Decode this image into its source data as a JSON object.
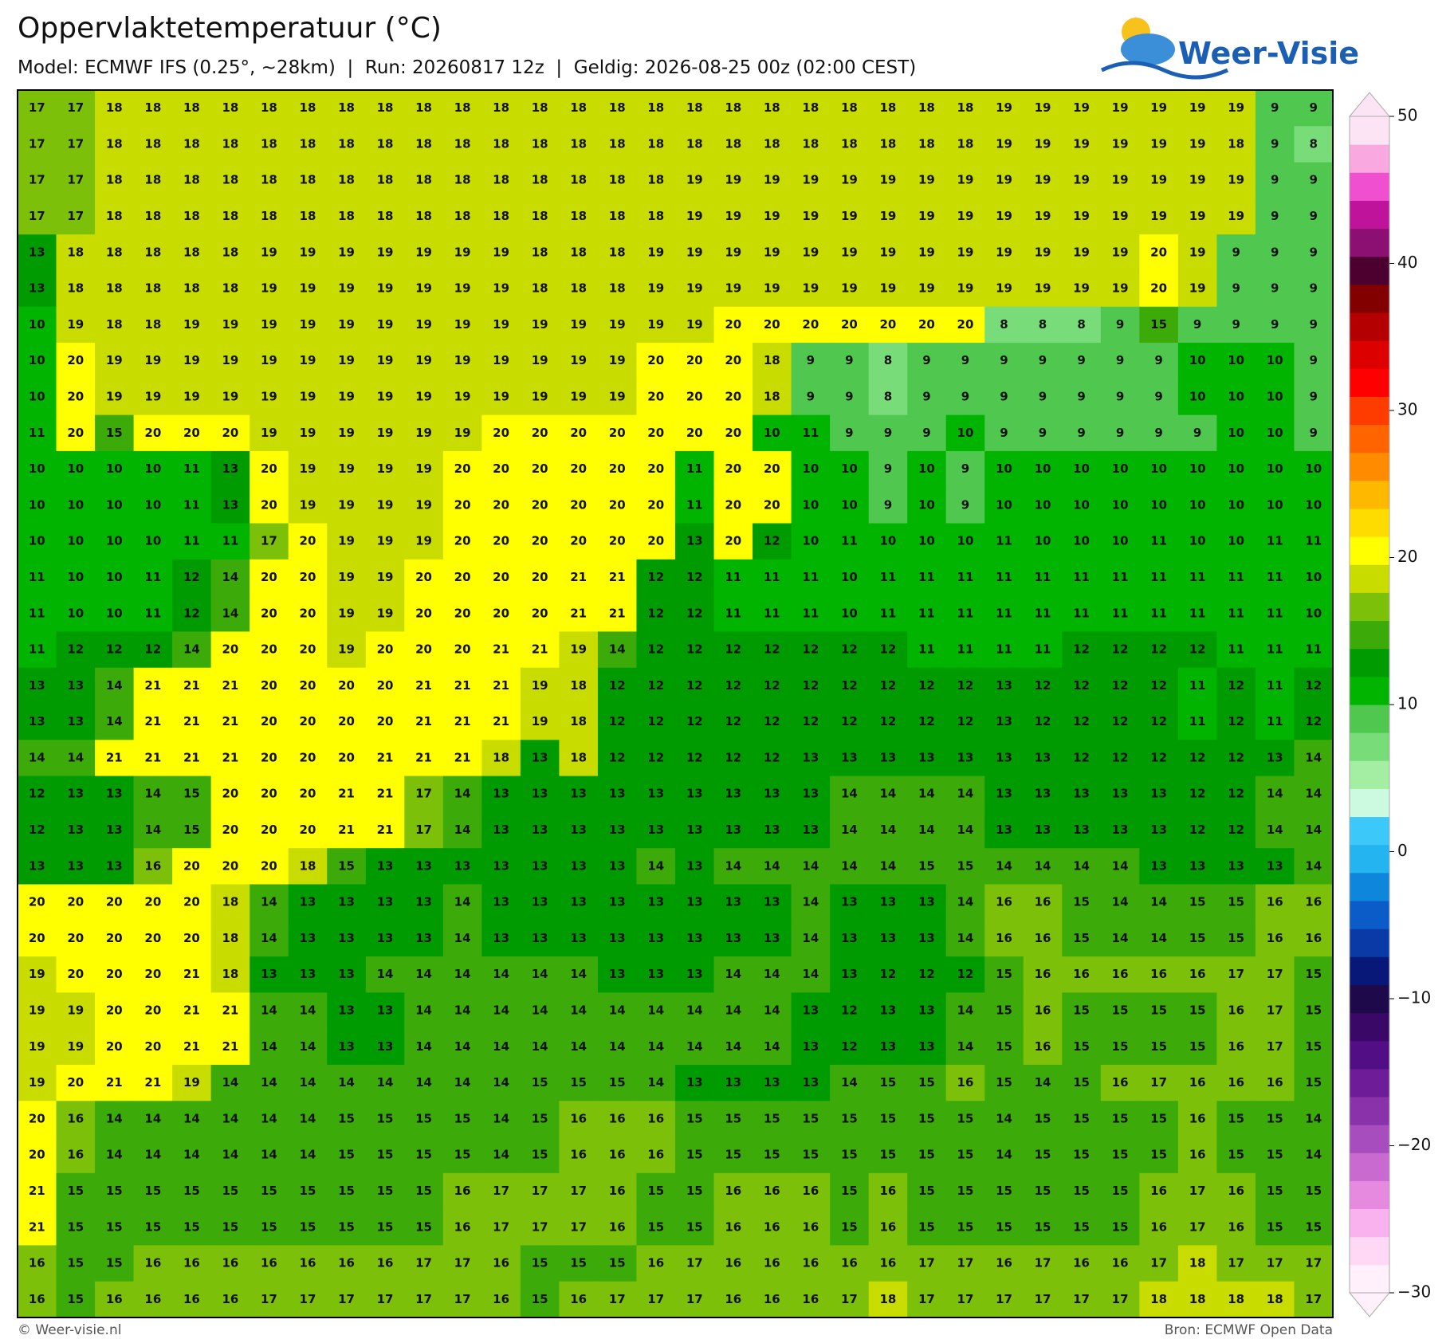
{
  "header": {
    "title": "Oppervlaktetemperatuur (°C)",
    "subtitle": "Model: ECMWF IFS (0.25°, ~28km)  |  Run: 20260817 12z  |  Geldig: 2026-08-25 00z (02:00 CEST)",
    "logo": "Weer-Visie"
  },
  "map": {
    "rows": [
      [
        17,
        17,
        18,
        18,
        18,
        18,
        18,
        18,
        18,
        18,
        18,
        18,
        18,
        18,
        18,
        18,
        18,
        18,
        18,
        18,
        18,
        18,
        18,
        18,
        18,
        19,
        19,
        19,
        19,
        19,
        19,
        19,
        9,
        9
      ],
      [
        17,
        17,
        18,
        18,
        18,
        18,
        18,
        18,
        18,
        18,
        18,
        18,
        18,
        18,
        18,
        18,
        18,
        18,
        18,
        18,
        18,
        18,
        18,
        18,
        18,
        19,
        19,
        19,
        19,
        19,
        19,
        18,
        9,
        8
      ],
      [
        17,
        17,
        18,
        18,
        18,
        18,
        18,
        18,
        18,
        18,
        18,
        18,
        18,
        18,
        18,
        18,
        18,
        19,
        19,
        19,
        19,
        19,
        19,
        19,
        19,
        19,
        19,
        19,
        19,
        19,
        19,
        19,
        9,
        9
      ],
      [
        17,
        17,
        18,
        18,
        18,
        18,
        18,
        18,
        18,
        18,
        18,
        18,
        18,
        18,
        18,
        18,
        18,
        19,
        19,
        19,
        19,
        19,
        19,
        19,
        19,
        19,
        19,
        19,
        19,
        19,
        19,
        19,
        9,
        9
      ],
      [
        13,
        18,
        18,
        18,
        18,
        18,
        19,
        19,
        19,
        19,
        19,
        19,
        19,
        18,
        18,
        18,
        19,
        19,
        19,
        19,
        19,
        19,
        19,
        19,
        19,
        19,
        19,
        19,
        19,
        20,
        19,
        9,
        9,
        9
      ],
      [
        13,
        18,
        18,
        18,
        18,
        18,
        19,
        19,
        19,
        19,
        19,
        19,
        19,
        18,
        18,
        18,
        19,
        19,
        19,
        19,
        19,
        19,
        19,
        19,
        19,
        19,
        19,
        19,
        19,
        20,
        19,
        9,
        9,
        9
      ],
      [
        10,
        19,
        18,
        18,
        19,
        19,
        19,
        19,
        19,
        19,
        19,
        19,
        19,
        19,
        19,
        19,
        19,
        19,
        20,
        20,
        20,
        20,
        20,
        20,
        20,
        8,
        8,
        8,
        9,
        15,
        9,
        9,
        9,
        9
      ],
      [
        10,
        20,
        19,
        19,
        19,
        19,
        19,
        19,
        19,
        19,
        19,
        19,
        19,
        19,
        19,
        19,
        20,
        20,
        20,
        18,
        9,
        9,
        8,
        9,
        9,
        9,
        9,
        9,
        9,
        9,
        10,
        10,
        10,
        9
      ],
      [
        10,
        20,
        19,
        19,
        19,
        19,
        19,
        19,
        19,
        19,
        19,
        19,
        19,
        19,
        19,
        19,
        20,
        20,
        20,
        18,
        9,
        9,
        8,
        9,
        9,
        9,
        9,
        9,
        9,
        9,
        10,
        10,
        10,
        9
      ],
      [
        11,
        20,
        15,
        20,
        20,
        20,
        19,
        19,
        19,
        19,
        19,
        19,
        20,
        20,
        20,
        20,
        20,
        20,
        20,
        10,
        11,
        9,
        9,
        9,
        10,
        9,
        9,
        9,
        9,
        9,
        9,
        10,
        10,
        9
      ],
      [
        10,
        10,
        10,
        10,
        11,
        13,
        20,
        19,
        19,
        19,
        19,
        20,
        20,
        20,
        20,
        20,
        20,
        11,
        20,
        20,
        10,
        10,
        9,
        10,
        9,
        10,
        10,
        10,
        10,
        10,
        10,
        10,
        10,
        10
      ],
      [
        10,
        10,
        10,
        10,
        11,
        13,
        20,
        19,
        19,
        19,
        19,
        20,
        20,
        20,
        20,
        20,
        20,
        11,
        20,
        20,
        10,
        10,
        9,
        10,
        9,
        10,
        10,
        10,
        10,
        10,
        10,
        10,
        10,
        10
      ],
      [
        10,
        10,
        10,
        10,
        11,
        11,
        17,
        20,
        19,
        19,
        19,
        20,
        20,
        20,
        20,
        20,
        20,
        13,
        20,
        12,
        10,
        11,
        10,
        10,
        10,
        11,
        10,
        10,
        10,
        11,
        10,
        10,
        11,
        11
      ],
      [
        11,
        10,
        10,
        11,
        12,
        14,
        20,
        20,
        19,
        19,
        20,
        20,
        20,
        20,
        21,
        21,
        12,
        12,
        11,
        11,
        11,
        10,
        11,
        11,
        11,
        11,
        11,
        11,
        11,
        11,
        11,
        11,
        11,
        10
      ],
      [
        11,
        10,
        10,
        11,
        12,
        14,
        20,
        20,
        19,
        19,
        20,
        20,
        20,
        20,
        21,
        21,
        12,
        12,
        11,
        11,
        11,
        10,
        11,
        11,
        11,
        11,
        11,
        11,
        11,
        11,
        11,
        11,
        11,
        10
      ],
      [
        11,
        12,
        12,
        12,
        14,
        20,
        20,
        20,
        19,
        20,
        20,
        20,
        21,
        21,
        19,
        14,
        12,
        12,
        12,
        12,
        12,
        12,
        12,
        11,
        11,
        11,
        11,
        12,
        12,
        12,
        12,
        11,
        11,
        11
      ],
      [
        13,
        13,
        14,
        21,
        21,
        21,
        20,
        20,
        20,
        20,
        21,
        21,
        21,
        19,
        18,
        12,
        12,
        12,
        12,
        12,
        12,
        12,
        12,
        12,
        12,
        13,
        12,
        12,
        12,
        12,
        11,
        12,
        11,
        12
      ],
      [
        13,
        13,
        14,
        21,
        21,
        21,
        20,
        20,
        20,
        20,
        21,
        21,
        21,
        19,
        18,
        12,
        12,
        12,
        12,
        12,
        12,
        12,
        12,
        12,
        12,
        13,
        12,
        12,
        12,
        12,
        11,
        12,
        11,
        12
      ],
      [
        14,
        14,
        21,
        21,
        21,
        21,
        20,
        20,
        20,
        21,
        21,
        21,
        18,
        13,
        18,
        12,
        12,
        12,
        12,
        12,
        13,
        13,
        13,
        13,
        13,
        13,
        13,
        12,
        12,
        12,
        12,
        12,
        13,
        14
      ],
      [
        12,
        13,
        13,
        14,
        15,
        20,
        20,
        20,
        21,
        21,
        17,
        14,
        13,
        13,
        13,
        13,
        13,
        13,
        13,
        13,
        13,
        14,
        14,
        14,
        14,
        13,
        13,
        13,
        13,
        13,
        12,
        12,
        14,
        14
      ],
      [
        12,
        13,
        13,
        14,
        15,
        20,
        20,
        20,
        21,
        21,
        17,
        14,
        13,
        13,
        13,
        13,
        13,
        13,
        13,
        13,
        13,
        14,
        14,
        14,
        14,
        13,
        13,
        13,
        13,
        13,
        12,
        12,
        14,
        14
      ],
      [
        13,
        13,
        13,
        16,
        20,
        20,
        20,
        18,
        15,
        13,
        13,
        13,
        13,
        13,
        13,
        13,
        14,
        13,
        14,
        14,
        14,
        14,
        14,
        15,
        15,
        14,
        14,
        14,
        14,
        13,
        13,
        13,
        13,
        14
      ],
      [
        20,
        20,
        20,
        20,
        20,
        18,
        14,
        13,
        13,
        13,
        13,
        14,
        13,
        13,
        13,
        13,
        13,
        13,
        13,
        13,
        14,
        13,
        13,
        13,
        14,
        16,
        16,
        15,
        14,
        14,
        15,
        15,
        16,
        16
      ],
      [
        20,
        20,
        20,
        20,
        20,
        18,
        14,
        13,
        13,
        13,
        13,
        14,
        13,
        13,
        13,
        13,
        13,
        13,
        13,
        13,
        14,
        13,
        13,
        13,
        14,
        16,
        16,
        15,
        14,
        14,
        15,
        15,
        16,
        16
      ],
      [
        19,
        20,
        20,
        20,
        21,
        18,
        13,
        13,
        13,
        14,
        14,
        14,
        14,
        14,
        14,
        13,
        13,
        13,
        14,
        14,
        14,
        13,
        12,
        12,
        12,
        15,
        16,
        16,
        16,
        16,
        16,
        17,
        17,
        15
      ],
      [
        19,
        19,
        20,
        20,
        21,
        21,
        14,
        14,
        13,
        13,
        14,
        14,
        14,
        14,
        14,
        14,
        14,
        14,
        14,
        14,
        13,
        12,
        13,
        13,
        14,
        15,
        16,
        15,
        15,
        15,
        15,
        16,
        17,
        15
      ],
      [
        19,
        19,
        20,
        20,
        21,
        21,
        14,
        14,
        13,
        13,
        14,
        14,
        14,
        14,
        14,
        14,
        14,
        14,
        14,
        14,
        13,
        12,
        13,
        13,
        14,
        15,
        16,
        15,
        15,
        15,
        15,
        16,
        17,
        15
      ],
      [
        19,
        20,
        21,
        21,
        19,
        14,
        14,
        14,
        14,
        14,
        14,
        14,
        14,
        15,
        15,
        15,
        14,
        13,
        13,
        13,
        13,
        14,
        15,
        15,
        16,
        15,
        14,
        15,
        16,
        17,
        16,
        16,
        16,
        15
      ],
      [
        20,
        16,
        14,
        14,
        14,
        14,
        14,
        14,
        15,
        15,
        15,
        15,
        14,
        15,
        16,
        16,
        16,
        15,
        15,
        15,
        15,
        15,
        15,
        15,
        15,
        14,
        15,
        15,
        15,
        15,
        16,
        15,
        15,
        14
      ],
      [
        20,
        16,
        14,
        14,
        14,
        14,
        14,
        14,
        15,
        15,
        15,
        15,
        14,
        15,
        16,
        16,
        16,
        15,
        15,
        15,
        15,
        15,
        15,
        15,
        15,
        14,
        15,
        15,
        15,
        15,
        16,
        15,
        15,
        14
      ],
      [
        21,
        15,
        15,
        15,
        15,
        15,
        15,
        15,
        15,
        15,
        15,
        16,
        17,
        17,
        17,
        16,
        15,
        15,
        16,
        16,
        16,
        15,
        16,
        15,
        15,
        15,
        15,
        15,
        15,
        16,
        17,
        16,
        15,
        15
      ],
      [
        21,
        15,
        15,
        15,
        15,
        15,
        15,
        15,
        15,
        15,
        15,
        16,
        17,
        17,
        17,
        16,
        15,
        15,
        16,
        16,
        16,
        15,
        16,
        15,
        15,
        15,
        15,
        15,
        15,
        16,
        17,
        16,
        15,
        15
      ],
      [
        16,
        15,
        15,
        16,
        16,
        16,
        16,
        16,
        16,
        16,
        17,
        17,
        16,
        15,
        15,
        15,
        16,
        17,
        16,
        16,
        16,
        16,
        16,
        17,
        17,
        16,
        17,
        16,
        16,
        17,
        18,
        17,
        17,
        17
      ],
      [
        16,
        15,
        16,
        16,
        16,
        16,
        17,
        17,
        17,
        17,
        17,
        17,
        16,
        15,
        16,
        17,
        17,
        17,
        16,
        16,
        16,
        17,
        18,
        17,
        17,
        17,
        17,
        17,
        17,
        18,
        18,
        18,
        18,
        17
      ]
    ]
  },
  "colorbar": {
    "range": [
      -30,
      50
    ],
    "ticks": [
      {
        "value": -30,
        "label": "−30"
      },
      {
        "value": -20,
        "label": "−20"
      },
      {
        "value": -10,
        "label": "−10"
      },
      0,
      10,
      20,
      30,
      40,
      50
    ],
    "colors": [
      "#fff0fb",
      "#ffd8f5",
      "#f9b2ee",
      "#e68ae0",
      "#c86ad0",
      "#a84dbd",
      "#8a32aa",
      "#6e1c98",
      "#520e84",
      "#3a0866",
      "#1e0a4a",
      "#081878",
      "#0a3aa6",
      "#0b5cc8",
      "#0d86dc",
      "#24b4f0",
      "#3cc8f8",
      "#ccfae0",
      "#a4eea4",
      "#78dc78",
      "#50c850",
      "#00b400",
      "#009b00",
      "#3cab0a",
      "#7cc00a",
      "#c8dc00",
      "#ffff00",
      "#ffdc00",
      "#ffb800",
      "#ff8c00",
      "#ff6400",
      "#ff3c00",
      "#ff0000",
      "#dc0000",
      "#b40000",
      "#820000",
      "#4c0030",
      "#8c1072",
      "#c0139c",
      "#f050d0",
      "#f9a8e0",
      "#fde4f4"
    ]
  },
  "footer": {
    "left": "© Weer-visie.nl",
    "right": "Bron: ECMWF Open Data"
  }
}
